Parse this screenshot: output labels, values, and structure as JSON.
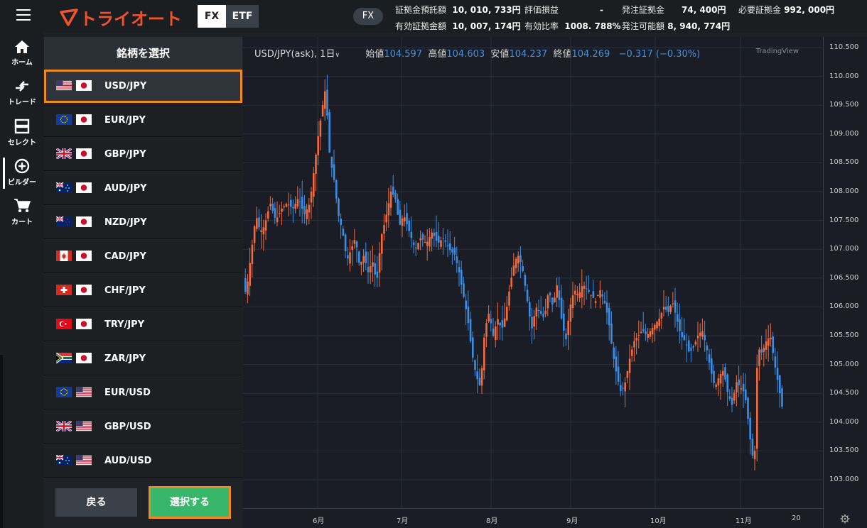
{
  "app": {
    "brand": "トライオート"
  },
  "tabs": {
    "fx": "FX",
    "etf": "ETF"
  },
  "account_pill": "FX",
  "stats": {
    "deposit_label": "証拠金預託額",
    "deposit_value": "10, 010, 733円",
    "pnl_label": "評価損益",
    "pnl_value": "-",
    "order_margin_label": "発注証拠金",
    "order_margin_value": "74, 400円",
    "required_margin_label": "必要証拠金",
    "required_margin_value": "992, 000円",
    "effective_label": "有効証拠金額",
    "effective_value": "10, 007, 174円",
    "ratio_label": "有効比率",
    "ratio_value": "1008. 788%",
    "available_label": "発注可能額",
    "available_value": "8, 940, 774円"
  },
  "nav": {
    "home": "ホーム",
    "trade": "トレード",
    "select": "セレクト",
    "builder": "ビルダー",
    "cart": "カート"
  },
  "panel": {
    "title": "銘柄を選択",
    "pairs": [
      {
        "name": "USD/JPY",
        "f1": "us",
        "f2": "jp"
      },
      {
        "name": "EUR/JPY",
        "f1": "eu",
        "f2": "jp"
      },
      {
        "name": "GBP/JPY",
        "f1": "uk",
        "f2": "jp"
      },
      {
        "name": "AUD/JPY",
        "f1": "au",
        "f2": "jp"
      },
      {
        "name": "NZD/JPY",
        "f1": "nz",
        "f2": "jp"
      },
      {
        "name": "CAD/JPY",
        "f1": "ca",
        "f2": "jp"
      },
      {
        "name": "CHF/JPY",
        "f1": "ch",
        "f2": "jp"
      },
      {
        "name": "TRY/JPY",
        "f1": "tr",
        "f2": "jp"
      },
      {
        "name": "ZAR/JPY",
        "f1": "za",
        "f2": "jp"
      },
      {
        "name": "EUR/USD",
        "f1": "eu",
        "f2": "us"
      },
      {
        "name": "GBP/USD",
        "f1": "uk",
        "f2": "us"
      },
      {
        "name": "AUD/USD",
        "f1": "au",
        "f2": "us"
      }
    ],
    "back": "戻る",
    "select": "選択する"
  },
  "chart": {
    "symbol": "USD/JPY(ask),",
    "interval": "1日",
    "open_label": "始値",
    "open": "104.597",
    "high_label": "高値",
    "high": "104.603",
    "low_label": "安値",
    "low": "104.237",
    "close_label": "終値",
    "close": "104.269",
    "change": "−0.317 (−0.30%)",
    "watermark": "TradingView",
    "price_ticks": [
      "110.500",
      "110.000",
      "109.500",
      "109.000",
      "108.500",
      "108.000",
      "107.500",
      "107.000",
      "106.500",
      "106.000",
      "105.500",
      "105.000",
      "104.500",
      "104.000",
      "103.500",
      "103.000"
    ],
    "time_ticks": [
      "6月",
      "7月",
      "8月",
      "9月",
      "10月",
      "11月",
      "20"
    ],
    "up_color": "#f26b3a",
    "down_color": "#3a8ee6"
  },
  "chart_data": {
    "type": "candlestick",
    "title": "USD/JPY(ask), 1日",
    "ylim": [
      102.7,
      110.7
    ],
    "x": [
      "",
      "6月",
      "",
      "7月",
      "",
      "8月",
      "",
      "9月",
      "",
      "10月",
      "",
      "11月",
      "20"
    ],
    "series": [
      {
        "name": "USD/JPY",
        "values": [
          106.8,
          107.5,
          109.6,
          107.3,
          107.4,
          105.8,
          106.0,
          106.3,
          105.7,
          105.6,
          104.7,
          103.4,
          104.27
        ]
      }
    ],
    "ylabel": ""
  }
}
